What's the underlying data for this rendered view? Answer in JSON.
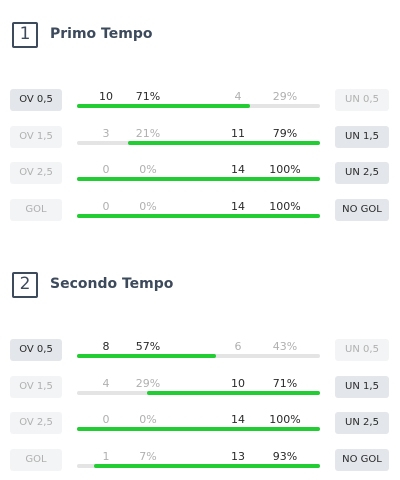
{
  "sections": [
    {
      "number": "1",
      "title": "Primo Tempo",
      "rows": [
        {
          "left_label": "OV 0,5",
          "left_count": 10,
          "left_pct": {
            "value": 71,
            "label": "71%"
          },
          "right_count": 4,
          "right_pct": {
            "value": 29,
            "label": "29%"
          },
          "right_label": "UN 0,5"
        },
        {
          "left_label": "OV 1,5",
          "left_count": 3,
          "left_pct": {
            "value": 21,
            "label": "21%"
          },
          "right_count": 11,
          "right_pct": {
            "value": 79,
            "label": "79%"
          },
          "right_label": "UN 1,5"
        },
        {
          "left_label": "OV 2,5",
          "left_count": 0,
          "left_pct": {
            "value": 0,
            "label": "0%"
          },
          "right_count": 14,
          "right_pct": {
            "value": 100,
            "label": "100%"
          },
          "right_label": "UN 2,5"
        },
        {
          "left_label": "GOL",
          "left_count": 0,
          "left_pct": {
            "value": 0,
            "label": "0%"
          },
          "right_count": 14,
          "right_pct": {
            "value": 100,
            "label": "100%"
          },
          "right_label": "NO GOL"
        }
      ]
    },
    {
      "number": "2",
      "title": "Secondo Tempo",
      "rows": [
        {
          "left_label": "OV 0,5",
          "left_count": 8,
          "left_pct": {
            "value": 57,
            "label": "57%"
          },
          "right_count": 6,
          "right_pct": {
            "value": 43,
            "label": "43%"
          },
          "right_label": "UN 0,5"
        },
        {
          "left_label": "OV 1,5",
          "left_count": 4,
          "left_pct": {
            "value": 29,
            "label": "29%"
          },
          "right_count": 10,
          "right_pct": {
            "value": 71,
            "label": "71%"
          },
          "right_label": "UN 1,5"
        },
        {
          "left_label": "OV 2,5",
          "left_count": 0,
          "left_pct": {
            "value": 0,
            "label": "0%"
          },
          "right_count": 14,
          "right_pct": {
            "value": 100,
            "label": "100%"
          },
          "right_label": "UN 2,5"
        },
        {
          "left_label": "GOL",
          "left_count": 1,
          "left_pct": {
            "value": 7,
            "label": "7%"
          },
          "right_count": 13,
          "right_pct": {
            "value": 93,
            "label": "93%"
          },
          "right_label": "NO GOL"
        }
      ]
    }
  ]
}
